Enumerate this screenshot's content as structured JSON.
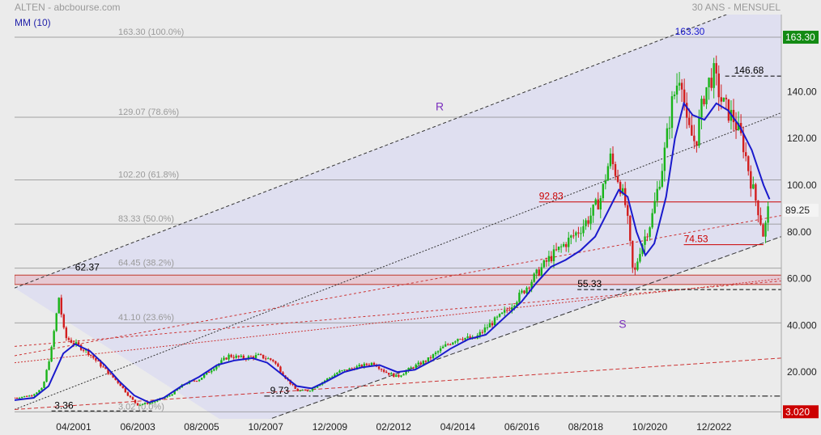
{
  "header": {
    "left": "ALTEN - abcbourse.com",
    "right": "30 ANS - MENSUEL",
    "indicator": "MM (10)"
  },
  "colors": {
    "up": "#19b419",
    "down": "#d21e1e",
    "ma": "#1a1acc",
    "grid": "#8a8a8a",
    "channel_fill": "#dfdff0",
    "band_fill": "#e6c9d3",
    "last_label_bg": "#138a13",
    "low_label_bg": "#cc0000"
  },
  "chart_data": {
    "type": "candlestick",
    "title": "",
    "x_tick_labels": [
      "04/2001",
      "06/2003",
      "08/2005",
      "10/2007",
      "12/2009",
      "02/2012",
      "04/2014",
      "06/2016",
      "08/2018",
      "10/2020",
      "12/2022"
    ],
    "x_tick_years": [
      2001.25,
      2003.42,
      2005.58,
      2007.75,
      2009.92,
      2012.08,
      2014.25,
      2016.42,
      2018.58,
      2020.75,
      2022.92
    ],
    "y_tick_labels": [
      "20.000",
      "40.000",
      "60.00",
      "80.00",
      "100.00",
      "120.00",
      "140.00"
    ],
    "y_tick_values": [
      20,
      40,
      60,
      80,
      100,
      120,
      140
    ],
    "ylim": [
      0,
      173
    ],
    "xlim": [
      1999.25,
      2025.2
    ],
    "last_price": "89.25",
    "last_price_value": 89.25,
    "high_label": "163.30",
    "high_value": 163.3,
    "low_label": "3.020",
    "low_value": 3.02,
    "fibonacci": [
      {
        "label": "163.30 (100.0%)",
        "value": 163.3
      },
      {
        "label": "129.07 (78.6%)",
        "value": 129.07
      },
      {
        "label": "102.20 (61.8%)",
        "value": 102.2
      },
      {
        "label": "83.33 (50.0%)",
        "value": 83.33
      },
      {
        "label": "64.45 (38.2%)",
        "value": 64.45
      },
      {
        "label": "41.10 (23.6%)",
        "value": 41.1
      },
      {
        "label": "3.02 (0.0%)",
        "value": 3.02
      }
    ],
    "annotations": [
      {
        "text": "163.30",
        "value": 163.3,
        "x": 2021.6,
        "color": "#1a1acc"
      },
      {
        "text": "146.68",
        "value": 146.68,
        "x": 2023.6,
        "color": "#000000"
      },
      {
        "text": "92.83",
        "value": 92.83,
        "x": 2017.0,
        "color": "#cc0000"
      },
      {
        "text": "74.53",
        "value": 74.53,
        "x": 2021.9,
        "color": "#cc0000"
      },
      {
        "text": "62.37",
        "value": 62.37,
        "x": 2001.3,
        "color": "#000000"
      },
      {
        "text": "55.33",
        "value": 55.33,
        "x": 2018.3,
        "color": "#000000"
      },
      {
        "text": "9.73",
        "value": 9.73,
        "x": 2007.9,
        "color": "#000000"
      },
      {
        "text": "3.36",
        "value": 3.36,
        "x": 2000.6,
        "color": "#000000"
      }
    ],
    "channel_labels": [
      {
        "text": "R",
        "x": 2013.5,
        "value": 132
      },
      {
        "text": "S",
        "x": 2019.7,
        "value": 39
      }
    ],
    "support_band": [
      57.5,
      61.5
    ],
    "horizontal_levels": [
      {
        "value": 92.83,
        "from": 2017.0,
        "to": 2025.2,
        "style": "solid",
        "color": "#cc0000"
      },
      {
        "value": 74.53,
        "from": 2021.9,
        "to": 2024.6,
        "style": "solid",
        "color": "#cc0000"
      },
      {
        "value": 146.68,
        "from": 2023.3,
        "to": 2025.2,
        "style": "dashed",
        "color": "#000000"
      },
      {
        "value": 55.33,
        "from": 2018.3,
        "to": 2025.2,
        "style": "dashed",
        "color": "#000000"
      },
      {
        "value": 9.73,
        "from": 2007.7,
        "to": 2025.2,
        "style": "dashdot",
        "color": "#000000"
      },
      {
        "value": 3.36,
        "from": 2000.5,
        "to": 2003.9,
        "style": "dashed",
        "color": "#000000"
      }
    ],
    "trend_lines": [
      {
        "x1": 1999.25,
        "y1": 56,
        "x2": 2025.2,
        "y2": 182,
        "color": "#333333",
        "dash": "4,3"
      },
      {
        "x1": 1999.25,
        "y1": 4,
        "x2": 2025.2,
        "y2": 131,
        "color": "#333333",
        "dash": "2,2"
      },
      {
        "x1": 2006.8,
        "y1": -5,
        "x2": 2025.2,
        "y2": 78,
        "color": "#333333",
        "dash": "6,3"
      },
      {
        "x1": 1999.25,
        "y1": 27,
        "x2": 2025.2,
        "y2": 87,
        "color": "#cc3333",
        "dash": "3,3"
      },
      {
        "x1": 1999.25,
        "y1": 24,
        "x2": 2025.2,
        "y2": 60,
        "color": "#cc3333",
        "dash": "2,2"
      },
      {
        "x1": 1999.25,
        "y1": 31,
        "x2": 2025.2,
        "y2": 59,
        "color": "#cc3333",
        "dash": "3,3"
      },
      {
        "x1": 1999.25,
        "y1": 4,
        "x2": 2025.2,
        "y2": 26,
        "color": "#cc3333",
        "dash": "5,3"
      }
    ],
    "price_path": [
      [
        1999.25,
        9
      ],
      [
        1999.8,
        10
      ],
      [
        2000.2,
        13
      ],
      [
        2000.5,
        30
      ],
      [
        2000.75,
        52
      ],
      [
        2000.95,
        35
      ],
      [
        2001.3,
        32
      ],
      [
        2001.7,
        29
      ],
      [
        2002.0,
        25
      ],
      [
        2002.4,
        20
      ],
      [
        2002.8,
        15
      ],
      [
        2003.1,
        10
      ],
      [
        2003.4,
        6
      ],
      [
        2003.9,
        7
      ],
      [
        2004.5,
        10
      ],
      [
        2005.0,
        15
      ],
      [
        2005.5,
        17
      ],
      [
        2006.0,
        22
      ],
      [
        2006.5,
        27
      ],
      [
        2007.0,
        26
      ],
      [
        2007.5,
        27
      ],
      [
        2008.0,
        25
      ],
      [
        2008.4,
        18
      ],
      [
        2008.8,
        12
      ],
      [
        2009.2,
        12
      ],
      [
        2009.7,
        16
      ],
      [
        2010.2,
        20
      ],
      [
        2010.8,
        22
      ],
      [
        2011.4,
        24
      ],
      [
        2011.8,
        20
      ],
      [
        2012.2,
        18
      ],
      [
        2012.7,
        22
      ],
      [
        2013.2,
        25
      ],
      [
        2013.8,
        31
      ],
      [
        2014.3,
        35
      ],
      [
        2014.8,
        34
      ],
      [
        2015.3,
        40
      ],
      [
        2015.8,
        45
      ],
      [
        2016.3,
        52
      ],
      [
        2016.8,
        60
      ],
      [
        2017.3,
        68
      ],
      [
        2017.8,
        74
      ],
      [
        2018.3,
        80
      ],
      [
        2018.7,
        86
      ],
      [
        2019.1,
        95
      ],
      [
        2019.4,
        112
      ],
      [
        2019.7,
        102
      ],
      [
        2019.95,
        90
      ],
      [
        2020.2,
        60
      ],
      [
        2020.4,
        72
      ],
      [
        2020.8,
        85
      ],
      [
        2021.2,
        110
      ],
      [
        2021.5,
        135
      ],
      [
        2021.8,
        150
      ],
      [
        2022.0,
        125
      ],
      [
        2022.3,
        118
      ],
      [
        2022.6,
        140
      ],
      [
        2022.9,
        148
      ],
      [
        2023.2,
        135
      ],
      [
        2023.6,
        128
      ],
      [
        2023.9,
        118
      ],
      [
        2024.2,
        100
      ],
      [
        2024.45,
        88
      ],
      [
        2024.6,
        78
      ],
      [
        2024.75,
        89
      ]
    ],
    "ma_path": [
      [
        1999.25,
        8
      ],
      [
        1999.9,
        9
      ],
      [
        2000.4,
        14
      ],
      [
        2000.9,
        28
      ],
      [
        2001.3,
        32
      ],
      [
        2001.8,
        29
      ],
      [
        2002.3,
        23
      ],
      [
        2002.8,
        16
      ],
      [
        2003.3,
        10
      ],
      [
        2003.8,
        7
      ],
      [
        2004.3,
        9
      ],
      [
        2004.9,
        14
      ],
      [
        2005.5,
        18
      ],
      [
        2006.1,
        23
      ],
      [
        2006.7,
        25
      ],
      [
        2007.3,
        26
      ],
      [
        2007.8,
        24
      ],
      [
        2008.3,
        19
      ],
      [
        2008.8,
        14
      ],
      [
        2009.3,
        13
      ],
      [
        2009.8,
        16
      ],
      [
        2010.4,
        20
      ],
      [
        2011.0,
        22
      ],
      [
        2011.6,
        23
      ],
      [
        2012.2,
        20
      ],
      [
        2012.8,
        21
      ],
      [
        2013.4,
        25
      ],
      [
        2014.0,
        30
      ],
      [
        2014.6,
        34
      ],
      [
        2015.2,
        36
      ],
      [
        2015.8,
        43
      ],
      [
        2016.4,
        50
      ],
      [
        2016.9,
        58
      ],
      [
        2017.4,
        65
      ],
      [
        2017.9,
        68
      ],
      [
        2018.4,
        72
      ],
      [
        2018.9,
        78
      ],
      [
        2019.3,
        88
      ],
      [
        2019.7,
        98
      ],
      [
        2020.0,
        95
      ],
      [
        2020.3,
        80
      ],
      [
        2020.6,
        70
      ],
      [
        2020.9,
        75
      ],
      [
        2021.3,
        95
      ],
      [
        2021.6,
        120
      ],
      [
        2021.9,
        135
      ],
      [
        2022.2,
        130
      ],
      [
        2022.6,
        128
      ],
      [
        2023.0,
        135
      ],
      [
        2023.4,
        132
      ],
      [
        2023.8,
        125
      ],
      [
        2024.2,
        115
      ],
      [
        2024.6,
        100
      ],
      [
        2024.8,
        94
      ]
    ]
  }
}
